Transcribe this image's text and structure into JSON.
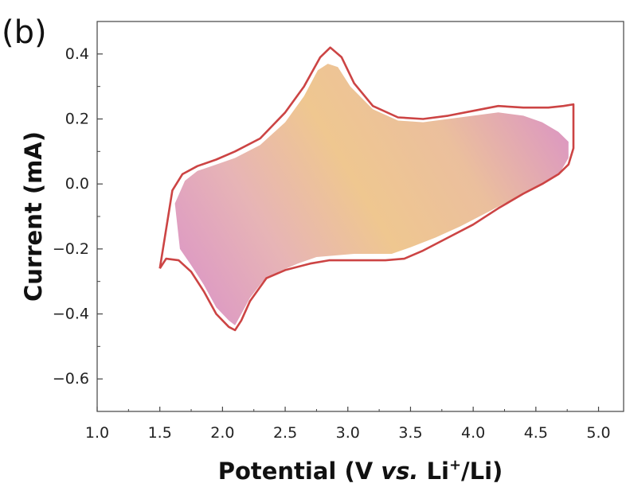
{
  "panel_label": "(b)",
  "chart_data": {
    "type": "line",
    "xlabel_main": "Potential (V ",
    "xlabel_italic": "vs.",
    "xlabel_li": " Li",
    "xlabel_sup": "+",
    "xlabel_end": "/Li)",
    "ylabel": "Current (mA)",
    "xlim": [
      1.0,
      5.2
    ],
    "ylim": [
      -0.7,
      0.5
    ],
    "x_ticks": [
      "1.0",
      "1.5",
      "2.0",
      "2.5",
      "3.0",
      "3.5",
      "4.0",
      "4.5",
      "5.0"
    ],
    "y_ticks": [
      "0.4",
      "0.2",
      "0.0",
      "−0.2",
      "−0.4",
      "−0.6"
    ],
    "grid": false,
    "colors": {
      "outline": "#cc4444",
      "fill_gold": "#efc790",
      "fill_pink": "#d98fc9"
    },
    "series": [
      {
        "kind": "outline",
        "x": [
          1.5,
          1.6,
          1.68,
          1.8,
          1.95,
          2.1,
          2.3,
          2.5,
          2.65,
          2.78,
          2.86,
          2.95,
          3.05,
          3.2,
          3.4,
          3.6,
          3.8,
          4.0,
          4.2,
          4.4,
          4.6,
          4.72,
          4.8,
          4.8,
          4.76,
          4.68,
          4.55,
          4.4,
          4.2,
          4.0,
          3.8,
          3.6,
          3.45,
          3.3,
          3.15,
          3.0,
          2.85,
          2.7,
          2.5,
          2.35,
          2.22,
          2.15,
          2.1,
          2.05,
          1.95,
          1.85,
          1.75,
          1.65,
          1.55,
          1.5
        ],
        "y": [
          -0.26,
          -0.02,
          0.03,
          0.055,
          0.075,
          0.1,
          0.14,
          0.22,
          0.3,
          0.39,
          0.42,
          0.39,
          0.31,
          0.24,
          0.205,
          0.2,
          0.21,
          0.225,
          0.24,
          0.235,
          0.235,
          0.24,
          0.245,
          0.11,
          0.06,
          0.03,
          0.0,
          -0.03,
          -0.075,
          -0.125,
          -0.165,
          -0.205,
          -0.23,
          -0.235,
          -0.235,
          -0.235,
          -0.235,
          -0.245,
          -0.265,
          -0.29,
          -0.36,
          -0.42,
          -0.45,
          -0.44,
          -0.4,
          -0.33,
          -0.27,
          -0.235,
          -0.23,
          -0.26
        ]
      },
      {
        "kind": "filled_region",
        "x": [
          1.62,
          1.7,
          1.8,
          1.95,
          2.1,
          2.3,
          2.5,
          2.65,
          2.76,
          2.84,
          2.92,
          3.02,
          3.2,
          3.4,
          3.6,
          3.8,
          4.0,
          4.2,
          4.4,
          4.55,
          4.68,
          4.76,
          4.76,
          4.7,
          4.6,
          4.45,
          4.3,
          4.1,
          3.9,
          3.7,
          3.5,
          3.35,
          3.2,
          3.05,
          2.9,
          2.75,
          2.6,
          2.45,
          2.32,
          2.22,
          2.15,
          2.1,
          2.05,
          1.95,
          1.85,
          1.75,
          1.66,
          1.62
        ],
        "y": [
          -0.06,
          0.01,
          0.04,
          0.06,
          0.08,
          0.12,
          0.19,
          0.27,
          0.35,
          0.37,
          0.36,
          0.3,
          0.23,
          0.195,
          0.19,
          0.2,
          0.21,
          0.22,
          0.21,
          0.19,
          0.16,
          0.13,
          0.08,
          0.04,
          0.01,
          -0.02,
          -0.05,
          -0.09,
          -0.13,
          -0.165,
          -0.195,
          -0.215,
          -0.215,
          -0.215,
          -0.22,
          -0.225,
          -0.245,
          -0.27,
          -0.3,
          -0.35,
          -0.4,
          -0.435,
          -0.42,
          -0.38,
          -0.31,
          -0.25,
          -0.2,
          -0.06
        ]
      }
    ]
  }
}
